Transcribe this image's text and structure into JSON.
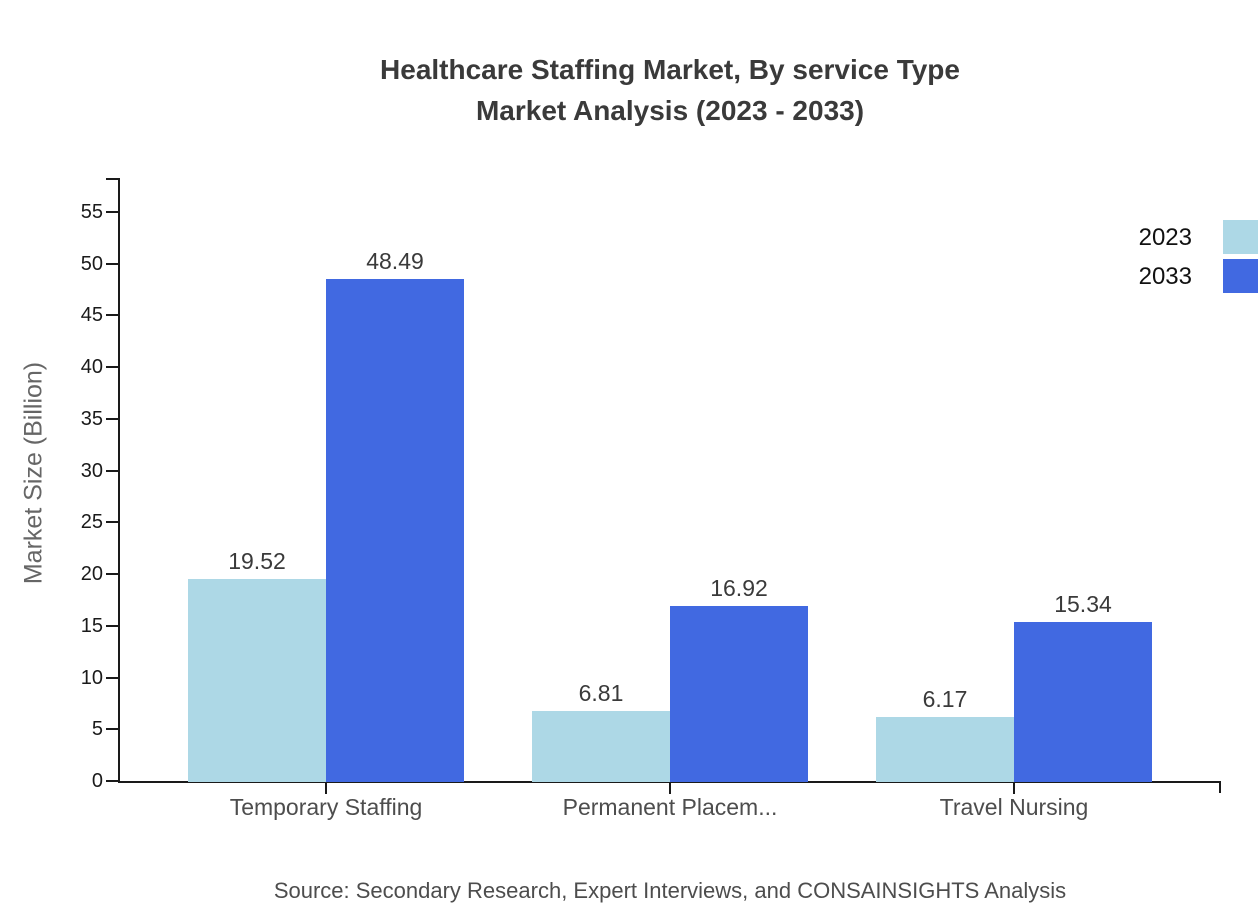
{
  "title": {
    "line1": "Healthcare Staffing Market, By service Type",
    "line2": "Market Analysis (2023 - 2033)"
  },
  "source_text": "Source: Secondary Research, Expert Interviews, and CONSAINSIGHTS Analysis",
  "chart_data": {
    "type": "bar",
    "title": "Healthcare Staffing Market, By service Type Market Analysis (2023 - 2033)",
    "categories": [
      "Temporary Staffing",
      "Permanent Placem...",
      "Travel Nursing"
    ],
    "series": [
      {
        "name": "2023",
        "color": "#ADD8E6",
        "values": [
          19.52,
          6.81,
          6.17
        ]
      },
      {
        "name": "2033",
        "color": "#4169E1",
        "values": [
          48.49,
          16.92,
          15.34
        ]
      }
    ],
    "xlabel": "",
    "ylabel": "Market Size (Billion)",
    "ylim": [
      0,
      57
    ],
    "yticks": [
      0,
      5,
      10,
      15,
      20,
      25,
      30,
      35,
      40,
      45,
      50,
      55
    ],
    "grid": false,
    "value_labels": true,
    "legend_position": "top-right",
    "bar_value_format": "2-decimals"
  },
  "colors": {
    "series_2023": "#ADD8E6",
    "series_2033": "#4169E1",
    "axis": "#1a1a1a",
    "title_text": "#3a3a3a",
    "tick_label": "#1a1a1a",
    "value_label": "#3a3a3a",
    "category_label": "#4d4d4d",
    "axis_title": "#666666",
    "legend_label": "#111111",
    "source_text": "#4d4d4d",
    "background": "#ffffff"
  }
}
